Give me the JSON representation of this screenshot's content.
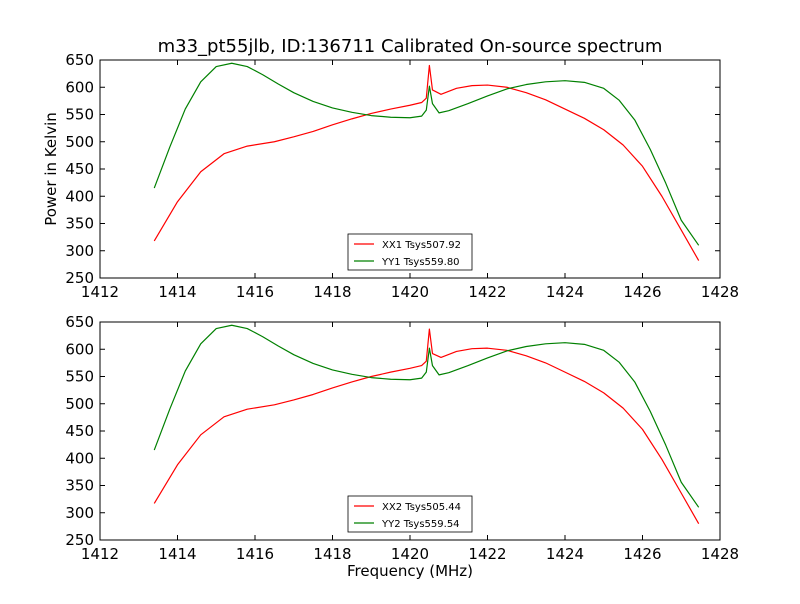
{
  "chart_data": [
    {
      "type": "line",
      "title": "m33_pt55jlb, ID:136711 Calibrated On-source spectrum",
      "xlabel": "",
      "ylabel": "Power in Kelvin",
      "xlim": [
        1412,
        1428
      ],
      "ylim": [
        250,
        650
      ],
      "xticks": [
        1412,
        1414,
        1416,
        1418,
        1420,
        1422,
        1424,
        1426,
        1428
      ],
      "yticks": [
        250,
        300,
        350,
        400,
        450,
        500,
        550,
        600,
        650
      ],
      "legend_position": "lower-center",
      "grid": false,
      "series": [
        {
          "name": "XX1 Tsys507.92",
          "color": "#ff0000",
          "x": [
            1413.4,
            1414.0,
            1414.6,
            1415.2,
            1415.8,
            1416.5,
            1417.0,
            1417.5,
            1418.0,
            1418.5,
            1419.0,
            1419.5,
            1420.0,
            1420.3,
            1420.42,
            1420.5,
            1420.58,
            1420.8,
            1421.2,
            1421.6,
            1422.0,
            1422.5,
            1423.0,
            1423.5,
            1424.0,
            1424.5,
            1425.0,
            1425.5,
            1426.0,
            1426.5,
            1427.0,
            1427.45
          ],
          "y": [
            318,
            390,
            445,
            478,
            492,
            500,
            509,
            519,
            531,
            542,
            552,
            560,
            567,
            572,
            580,
            640,
            595,
            587,
            598,
            603,
            604,
            600,
            590,
            577,
            560,
            543,
            522,
            494,
            455,
            400,
            338,
            282
          ]
        },
        {
          "name": "YY1 Tsys559.80",
          "color": "#008000",
          "x": [
            1413.4,
            1413.8,
            1414.2,
            1414.6,
            1415.0,
            1415.4,
            1415.8,
            1416.2,
            1416.6,
            1417.0,
            1417.5,
            1418.0,
            1418.5,
            1419.0,
            1419.5,
            1420.0,
            1420.3,
            1420.42,
            1420.5,
            1420.58,
            1420.75,
            1421.0,
            1421.5,
            1422.0,
            1422.5,
            1423.0,
            1423.5,
            1424.0,
            1424.5,
            1425.0,
            1425.4,
            1425.8,
            1426.2,
            1426.6,
            1427.0,
            1427.45
          ],
          "y": [
            415,
            490,
            560,
            610,
            638,
            644,
            638,
            623,
            606,
            590,
            574,
            562,
            554,
            548,
            545,
            544,
            547,
            558,
            602,
            570,
            553,
            557,
            570,
            584,
            597,
            605,
            610,
            612,
            609,
            598,
            576,
            540,
            486,
            424,
            356,
            310
          ]
        }
      ]
    },
    {
      "type": "line",
      "title": "",
      "xlabel": "Frequency (MHz)",
      "ylabel": "",
      "xlim": [
        1412,
        1428
      ],
      "ylim": [
        250,
        650
      ],
      "xticks": [
        1412,
        1414,
        1416,
        1418,
        1420,
        1422,
        1424,
        1426,
        1428
      ],
      "yticks": [
        250,
        300,
        350,
        400,
        450,
        500,
        550,
        600,
        650
      ],
      "legend_position": "lower-center",
      "grid": false,
      "series": [
        {
          "name": "XX2 Tsys505.44",
          "color": "#ff0000",
          "x": [
            1413.4,
            1414.0,
            1414.6,
            1415.2,
            1415.8,
            1416.5,
            1417.0,
            1417.5,
            1418.0,
            1418.5,
            1419.0,
            1419.5,
            1420.0,
            1420.3,
            1420.42,
            1420.5,
            1420.58,
            1420.8,
            1421.2,
            1421.6,
            1422.0,
            1422.5,
            1423.0,
            1423.5,
            1424.0,
            1424.5,
            1425.0,
            1425.5,
            1426.0,
            1426.5,
            1427.0,
            1427.45
          ],
          "y": [
            317,
            388,
            443,
            476,
            490,
            498,
            507,
            517,
            529,
            540,
            550,
            558,
            565,
            570,
            578,
            637,
            592,
            585,
            596,
            601,
            602,
            598,
            588,
            575,
            558,
            541,
            520,
            492,
            453,
            398,
            336,
            280
          ]
        },
        {
          "name": "YY2 Tsys559.54",
          "color": "#008000",
          "x": [
            1413.4,
            1413.8,
            1414.2,
            1414.6,
            1415.0,
            1415.4,
            1415.8,
            1416.2,
            1416.6,
            1417.0,
            1417.5,
            1418.0,
            1418.5,
            1419.0,
            1419.5,
            1420.0,
            1420.3,
            1420.42,
            1420.5,
            1420.58,
            1420.75,
            1421.0,
            1421.5,
            1422.0,
            1422.5,
            1423.0,
            1423.5,
            1424.0,
            1424.5,
            1425.0,
            1425.4,
            1425.8,
            1426.2,
            1426.6,
            1427.0,
            1427.45
          ],
          "y": [
            415,
            490,
            560,
            610,
            638,
            644,
            638,
            623,
            606,
            590,
            574,
            562,
            554,
            548,
            545,
            544,
            547,
            558,
            602,
            570,
            553,
            557,
            570,
            584,
            597,
            605,
            610,
            612,
            609,
            598,
            576,
            540,
            486,
            424,
            356,
            310
          ]
        }
      ]
    }
  ]
}
